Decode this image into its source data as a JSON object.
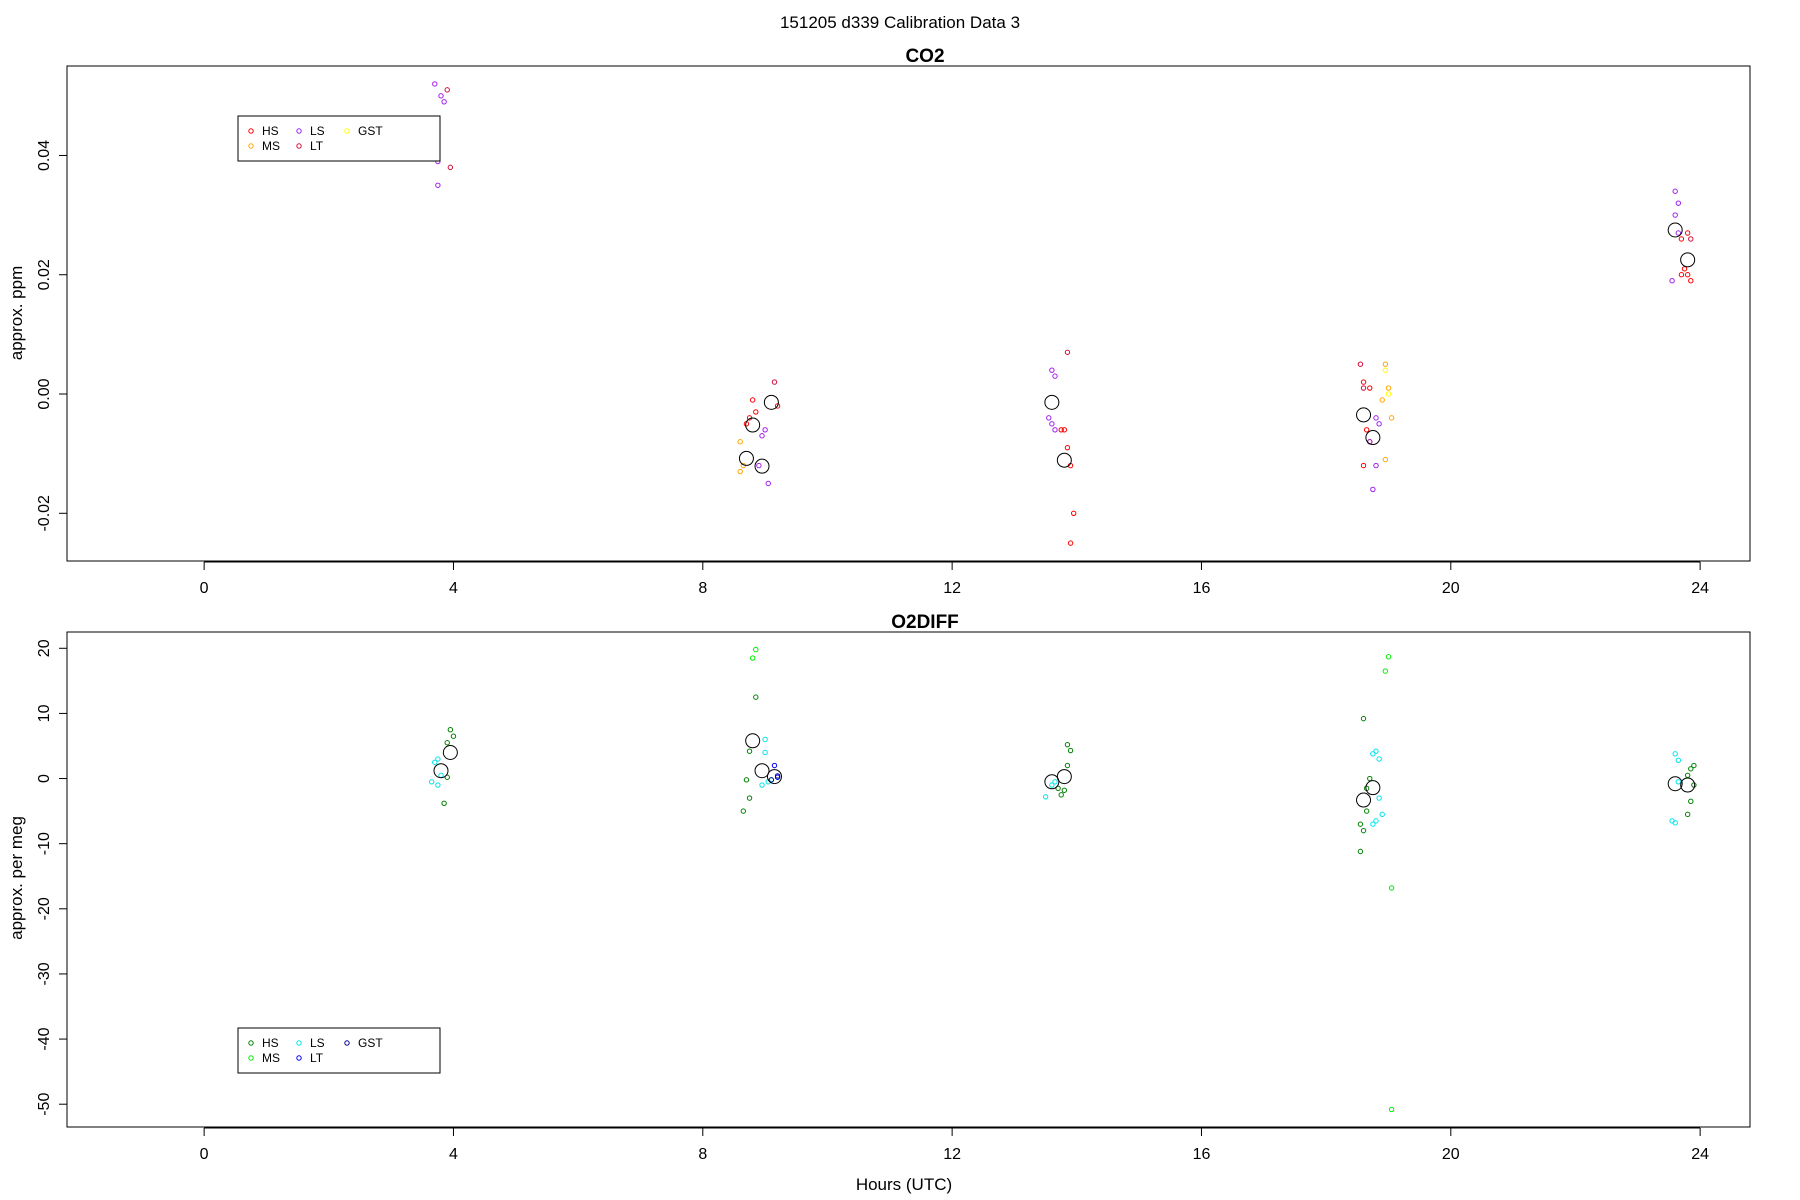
{
  "figure_title": "151205   d339   Calibration Data 3",
  "chart_data": [
    {
      "type": "scatter",
      "title": "CO2",
      "xlabel": "",
      "ylabel": "approx. ppm",
      "xlim": [
        -2.2,
        24.8
      ],
      "ylim": [
        -0.028,
        0.055
      ],
      "xticks": [
        0,
        4,
        8,
        12,
        16,
        20,
        24
      ],
      "yticks": [
        -0.02,
        0.0,
        0.02,
        0.04
      ],
      "ytick_labels": [
        "-0.02",
        "0.00",
        "0.02",
        "0.04"
      ],
      "legend_placement": "top-left",
      "legend": [
        {
          "label": "HS",
          "color": "#ff0000"
        },
        {
          "label": "MS",
          "color": "#ffa500"
        },
        {
          "label": "LS",
          "color": "#a020f0"
        },
        {
          "label": "LT",
          "color": "#d0103a"
        },
        {
          "label": "GST",
          "color": "#ffff00"
        }
      ],
      "series": [
        {
          "name": "HS",
          "color": "#ff0000",
          "points": [
            [
              8.75,
              -0.004
            ],
            [
              8.8,
              -0.001
            ],
            [
              8.85,
              -0.003
            ],
            [
              8.7,
              -0.005
            ],
            [
              9.2,
              -0.002
            ],
            [
              13.8,
              -0.006
            ],
            [
              13.85,
              -0.009
            ],
            [
              13.9,
              -0.012
            ],
            [
              13.95,
              -0.02
            ],
            [
              13.9,
              -0.025
            ],
            [
              13.75,
              -0.006
            ],
            [
              18.6,
              0.002
            ],
            [
              18.65,
              -0.006
            ],
            [
              18.7,
              -0.008
            ],
            [
              18.6,
              -0.012
            ],
            [
              18.7,
              0.001
            ],
            [
              23.7,
              0.026
            ],
            [
              23.75,
              0.021
            ],
            [
              23.8,
              0.02
            ],
            [
              23.85,
              0.019
            ],
            [
              23.8,
              0.027
            ],
            [
              23.7,
              0.02
            ]
          ]
        },
        {
          "name": "MS",
          "color": "#ffa500",
          "points": [
            [
              8.6,
              -0.008
            ],
            [
              8.65,
              -0.012
            ],
            [
              8.6,
              -0.013
            ],
            [
              18.95,
              0.005
            ],
            [
              19.0,
              0.001
            ],
            [
              18.9,
              -0.001
            ],
            [
              19.05,
              -0.004
            ],
            [
              18.95,
              -0.011
            ]
          ]
        },
        {
          "name": "LS",
          "color": "#a020f0",
          "points": [
            [
              3.7,
              0.052
            ],
            [
              3.8,
              0.05
            ],
            [
              3.75,
              0.039
            ],
            [
              3.75,
              0.035
            ],
            [
              3.85,
              0.049
            ],
            [
              8.95,
              -0.007
            ],
            [
              9.0,
              -0.006
            ],
            [
              9.05,
              -0.015
            ],
            [
              8.9,
              -0.012
            ],
            [
              13.6,
              0.004
            ],
            [
              13.65,
              0.003
            ],
            [
              13.55,
              -0.004
            ],
            [
              13.6,
              -0.005
            ],
            [
              13.65,
              -0.006
            ],
            [
              18.75,
              -0.016
            ],
            [
              18.8,
              -0.004
            ],
            [
              18.85,
              -0.005
            ],
            [
              18.7,
              -0.008
            ],
            [
              18.8,
              -0.012
            ],
            [
              23.6,
              0.034
            ],
            [
              23.65,
              0.032
            ],
            [
              23.6,
              0.03
            ],
            [
              23.55,
              0.019
            ],
            [
              23.65,
              0.027
            ]
          ]
        },
        {
          "name": "LT",
          "color": "#d0103a",
          "points": [
            [
              3.9,
              0.051
            ],
            [
              3.95,
              0.038
            ],
            [
              9.15,
              0.002
            ],
            [
              13.85,
              0.007
            ],
            [
              18.55,
              0.005
            ],
            [
              18.6,
              0.001
            ],
            [
              23.85,
              0.026
            ]
          ]
        },
        {
          "name": "GST",
          "color": "#ffff00",
          "points": [
            [
              19.0,
              0.0
            ],
            [
              18.95,
              0.004
            ]
          ]
        }
      ],
      "means": [
        [
          8.7,
          -0.0108
        ],
        [
          8.8,
          -0.0052
        ],
        [
          9.1,
          -0.0014
        ],
        [
          8.95,
          -0.0121
        ],
        [
          13.6,
          -0.0014
        ],
        [
          13.8,
          -0.0111
        ],
        [
          18.6,
          -0.0035
        ],
        [
          18.75,
          -0.0073
        ],
        [
          23.6,
          0.0275
        ],
        [
          23.8,
          0.0225
        ]
      ]
    },
    {
      "type": "scatter",
      "title": "O2DIFF",
      "xlabel": "Hours (UTC)",
      "ylabel": "approx. per meg",
      "xlim": [
        -2.2,
        24.8
      ],
      "ylim": [
        -53.5,
        22.5
      ],
      "xticks": [
        0,
        4,
        8,
        12,
        16,
        20,
        24
      ],
      "yticks": [
        -50,
        -40,
        -30,
        -20,
        -10,
        0,
        10,
        20
      ],
      "ytick_labels": [
        "-50",
        "-40",
        "-30",
        "-20",
        "-10",
        "0",
        "10",
        "20"
      ],
      "legend_placement": "bottom-left",
      "legend": [
        {
          "label": "HS",
          "color": "#008000"
        },
        {
          "label": "MS",
          "color": "#00ee00"
        },
        {
          "label": "LS",
          "color": "#00e5ee"
        },
        {
          "label": "LT",
          "color": "#0000ff"
        },
        {
          "label": "GST",
          "color": "#00008b"
        }
      ],
      "series": [
        {
          "name": "HS",
          "color": "#008000",
          "points": [
            [
              3.95,
              7.5
            ],
            [
              4.0,
              6.5
            ],
            [
              3.9,
              5.5
            ],
            [
              3.85,
              -3.8
            ],
            [
              3.9,
              0.2
            ],
            [
              8.75,
              4.2
            ],
            [
              8.7,
              -0.2
            ],
            [
              8.75,
              -3.0
            ],
            [
              8.65,
              -5.0
            ],
            [
              8.85,
              12.5
            ],
            [
              13.85,
              5.2
            ],
            [
              13.9,
              4.3
            ],
            [
              13.75,
              -2.5
            ],
            [
              13.8,
              -1.8
            ],
            [
              13.85,
              2.0
            ],
            [
              13.7,
              -1.5
            ],
            [
              18.6,
              9.2
            ],
            [
              18.55,
              -11.2
            ],
            [
              18.6,
              -8.0
            ],
            [
              18.55,
              -7.0
            ],
            [
              18.65,
              -1.5
            ],
            [
              18.7,
              0.0
            ],
            [
              18.65,
              -5.0
            ],
            [
              23.8,
              -5.5
            ],
            [
              23.85,
              -3.5
            ],
            [
              23.9,
              -1.0
            ],
            [
              23.85,
              1.5
            ],
            [
              23.9,
              2.0
            ],
            [
              23.8,
              0.5
            ]
          ]
        },
        {
          "name": "MS",
          "color": "#00ee00",
          "points": [
            [
              8.85,
              19.8
            ],
            [
              8.8,
              18.5
            ],
            [
              19.0,
              18.7
            ],
            [
              18.95,
              16.5
            ],
            [
              19.05,
              -16.8
            ],
            [
              19.05,
              -50.8
            ]
          ]
        },
        {
          "name": "LS",
          "color": "#00e5ee",
          "points": [
            [
              3.7,
              2.5
            ],
            [
              3.75,
              3.0
            ],
            [
              3.65,
              -0.5
            ],
            [
              3.75,
              -1.0
            ],
            [
              3.8,
              0.5
            ],
            [
              9.0,
              6.0
            ],
            [
              9.0,
              4.0
            ],
            [
              9.05,
              -0.5
            ],
            [
              8.95,
              -1.0
            ],
            [
              9.1,
              -0.2
            ],
            [
              13.5,
              -2.8
            ],
            [
              13.6,
              -1.0
            ],
            [
              13.65,
              -0.5
            ],
            [
              18.8,
              4.2
            ],
            [
              18.85,
              3.0
            ],
            [
              18.75,
              3.8
            ],
            [
              18.8,
              -6.5
            ],
            [
              18.75,
              -7.0
            ],
            [
              18.9,
              -5.5
            ],
            [
              18.85,
              -3.0
            ],
            [
              23.6,
              3.8
            ],
            [
              23.65,
              2.8
            ],
            [
              23.55,
              -6.5
            ],
            [
              23.6,
              -6.8
            ],
            [
              23.65,
              -0.5
            ]
          ]
        },
        {
          "name": "LT",
          "color": "#0000ff",
          "points": [
            [
              9.15,
              2.0
            ],
            [
              9.2,
              0.2
            ]
          ]
        },
        {
          "name": "GST",
          "color": "#00008b",
          "points": [
            [
              9.1,
              -0.2
            ],
            [
              9.2,
              0.4
            ]
          ]
        }
      ],
      "means": [
        [
          3.8,
          1.2
        ],
        [
          3.95,
          4.0
        ],
        [
          8.8,
          5.8
        ],
        [
          8.95,
          1.2
        ],
        [
          9.15,
          0.3
        ],
        [
          13.6,
          -0.5
        ],
        [
          13.8,
          0.3
        ],
        [
          18.6,
          -3.3
        ],
        [
          18.75,
          -1.4
        ],
        [
          23.6,
          -0.8
        ],
        [
          23.8,
          -1.0
        ]
      ]
    }
  ]
}
